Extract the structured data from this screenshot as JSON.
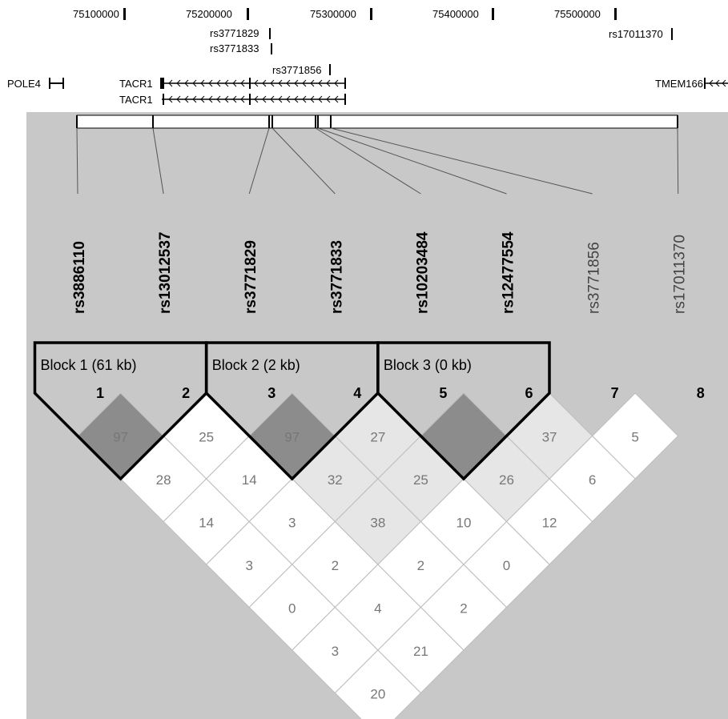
{
  "colors": {
    "page_bg": "#ffffff",
    "panel_bg": "#c8c8c8",
    "cell_white": "#ffffff",
    "cell_light": "#e6e6e6",
    "cell_dark": "#8c8c8c",
    "cell_text": "#777777",
    "block_outline": "#000000"
  },
  "genome_track": {
    "positions": [
      {
        "label": "75100000",
        "value": 75100000
      },
      {
        "label": "75200000",
        "value": 75200000
      },
      {
        "label": "75300000",
        "value": 75300000
      },
      {
        "label": "75400000",
        "value": 75400000
      },
      {
        "label": "75500000",
        "value": 75500000
      }
    ],
    "snp_tags": [
      {
        "label": "rs3771829"
      },
      {
        "label": "rs3771833"
      },
      {
        "label": "rs3771856"
      },
      {
        "label": "rs17011370"
      }
    ],
    "genes": [
      {
        "label": "POLE4"
      },
      {
        "label": "TACR1"
      },
      {
        "label": "TACR1"
      },
      {
        "label": "TMEM166"
      }
    ]
  },
  "markers": [
    {
      "name": "rs3886110",
      "number": "1",
      "bold": true
    },
    {
      "name": "rs13012537",
      "number": "2",
      "bold": true
    },
    {
      "name": "rs3771829",
      "number": "3",
      "bold": true
    },
    {
      "name": "rs3771833",
      "number": "4",
      "bold": true
    },
    {
      "name": "rs10203484",
      "number": "5",
      "bold": true
    },
    {
      "name": "rs12477554",
      "number": "6",
      "bold": true
    },
    {
      "name": "rs3771856",
      "number": "7",
      "bold": false
    },
    {
      "name": "rs17011370",
      "number": "8",
      "bold": false
    }
  ],
  "blocks": [
    {
      "label": "Block 1 (61 kb)",
      "first": 1,
      "last": 2
    },
    {
      "label": "Block 2 (2 kb)",
      "first": 3,
      "last": 4
    },
    {
      "label": "Block 3 (0 kb)",
      "first": 5,
      "last": 6
    }
  ],
  "ld_matrix": {
    "description_of_layout": "cells[k-1] lists pairs (i, i+k) for i = 1..8-k",
    "cells": [
      [
        {
          "i": 1,
          "j": 2,
          "value": "97",
          "shade": "dark"
        },
        {
          "i": 2,
          "j": 3,
          "value": "25",
          "shade": "white"
        },
        {
          "i": 3,
          "j": 4,
          "value": "97",
          "shade": "dark"
        },
        {
          "i": 4,
          "j": 5,
          "value": "27",
          "shade": "light"
        },
        {
          "i": 5,
          "j": 6,
          "value": "",
          "shade": "dark"
        },
        {
          "i": 6,
          "j": 7,
          "value": "37",
          "shade": "light"
        },
        {
          "i": 7,
          "j": 8,
          "value": "5",
          "shade": "white"
        }
      ],
      [
        {
          "i": 1,
          "j": 3,
          "value": "28",
          "shade": "white"
        },
        {
          "i": 2,
          "j": 4,
          "value": "14",
          "shade": "white"
        },
        {
          "i": 3,
          "j": 5,
          "value": "32",
          "shade": "light"
        },
        {
          "i": 4,
          "j": 6,
          "value": "25",
          "shade": "light"
        },
        {
          "i": 5,
          "j": 7,
          "value": "26",
          "shade": "light"
        },
        {
          "i": 6,
          "j": 8,
          "value": "6",
          "shade": "white"
        }
      ],
      [
        {
          "i": 1,
          "j": 4,
          "value": "14",
          "shade": "white"
        },
        {
          "i": 2,
          "j": 5,
          "value": "3",
          "shade": "white"
        },
        {
          "i": 3,
          "j": 6,
          "value": "38",
          "shade": "light"
        },
        {
          "i": 4,
          "j": 7,
          "value": "10",
          "shade": "white"
        },
        {
          "i": 5,
          "j": 8,
          "value": "12",
          "shade": "white"
        }
      ],
      [
        {
          "i": 1,
          "j": 5,
          "value": "3",
          "shade": "white"
        },
        {
          "i": 2,
          "j": 6,
          "value": "2",
          "shade": "white"
        },
        {
          "i": 3,
          "j": 7,
          "value": "2",
          "shade": "white"
        },
        {
          "i": 4,
          "j": 8,
          "value": "0",
          "shade": "white"
        }
      ],
      [
        {
          "i": 1,
          "j": 6,
          "value": "0",
          "shade": "white"
        },
        {
          "i": 2,
          "j": 7,
          "value": "4",
          "shade": "white"
        },
        {
          "i": 3,
          "j": 8,
          "value": "2",
          "shade": "white"
        }
      ],
      [
        {
          "i": 1,
          "j": 7,
          "value": "3",
          "shade": "white"
        },
        {
          "i": 2,
          "j": 8,
          "value": "21",
          "shade": "white"
        }
      ],
      [
        {
          "i": 1,
          "j": 8,
          "value": "20",
          "shade": "white"
        }
      ]
    ]
  }
}
